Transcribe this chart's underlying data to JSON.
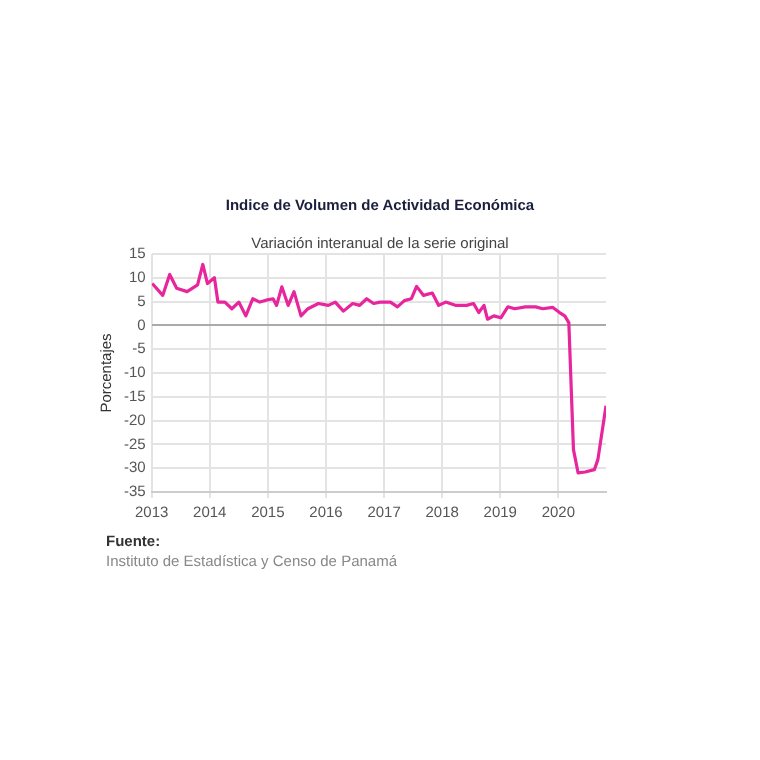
{
  "chart_data": {
    "type": "line",
    "title": "Indice de Volumen de  Actividad Económica",
    "subtitle": "Variación interanual de la serie original",
    "ylabel": "Porcentajes",
    "x": [
      2013.01,
      2013.19,
      2013.31,
      2013.43,
      2013.61,
      2013.79,
      2013.88,
      2013.96,
      2014.08,
      2014.14,
      2014.26,
      2014.38,
      2014.5,
      2014.62,
      2014.74,
      2014.86,
      2014.97,
      2015.09,
      2015.15,
      2015.24,
      2015.35,
      2015.45,
      2015.57,
      2015.69,
      2015.87,
      2016.04,
      2016.16,
      2016.3,
      2016.46,
      2016.58,
      2016.7,
      2016.82,
      2016.93,
      2017.11,
      2017.23,
      2017.35,
      2017.47,
      2017.56,
      2017.68,
      2017.83,
      2017.94,
      2018.06,
      2018.24,
      2018.42,
      2018.54,
      2018.63,
      2018.72,
      2018.78,
      2018.89,
      2019.01,
      2019.13,
      2019.25,
      2019.43,
      2019.61,
      2019.73,
      2019.9,
      2020.02,
      2020.11,
      2020.18,
      2020.26,
      2020.34,
      2020.46,
      2020.62,
      2020.68,
      2020.82
    ],
    "series": [
      {
        "color": "#e8259c",
        "values": [
          8.8,
          6.3,
          10.7,
          7.8,
          7.1,
          8.5,
          12.8,
          8.8,
          10,
          4.9,
          4.9,
          3.5,
          4.9,
          2,
          5.6,
          4.9,
          5.3,
          5.6,
          4.2,
          8.1,
          4.2,
          7.1,
          2,
          3.5,
          4.6,
          4.2,
          4.9,
          3,
          4.6,
          4.2,
          5.6,
          4.6,
          4.9,
          4.9,
          3.9,
          5.2,
          5.6,
          8.2,
          6.3,
          6.8,
          4.2,
          4.9,
          4.2,
          4.2,
          4.6,
          2.7,
          4.2,
          1.3,
          2,
          1.6,
          3.9,
          3.5,
          3.9,
          3.9,
          3.5,
          3.8,
          2.7,
          2,
          0.6,
          -26.1,
          -31,
          -30.8,
          -30.3,
          -28.2,
          -16.9
        ]
      }
    ],
    "xlim": [
      2013,
      2020.82
    ],
    "xticks": [
      2013,
      2014,
      2015,
      2016,
      2017,
      2018,
      2019,
      2020
    ],
    "ylim": [
      -35,
      15
    ],
    "yticks": [
      15,
      10,
      5,
      0,
      -5,
      -10,
      -15,
      -20,
      -25,
      -30,
      -35
    ],
    "grid": true,
    "legend": false,
    "marker": "none",
    "line_style": "solid",
    "annotations": [
      "Fuente:",
      "Instituto de Estadística y Censo de Panamá"
    ]
  }
}
